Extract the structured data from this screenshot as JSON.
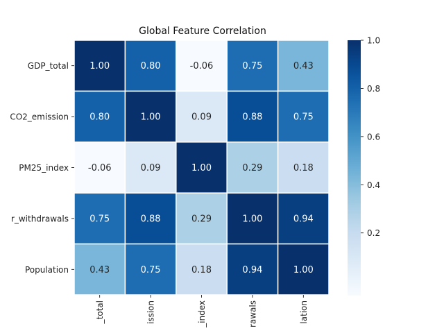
{
  "chart_data": {
    "type": "heatmap",
    "title": "Global Feature Correlation",
    "row_labels": [
      "GDP_total",
      "CO2_emission",
      "PM25_index",
      "r_withdrawals",
      "Population"
    ],
    "col_labels": [
      "_total",
      "ission",
      "_index",
      "rawals",
      "lation"
    ],
    "matrix": [
      [
        1.0,
        0.8,
        -0.06,
        0.75,
        0.43
      ],
      [
        0.8,
        1.0,
        0.09,
        0.88,
        0.75
      ],
      [
        -0.06,
        0.09,
        1.0,
        0.29,
        0.18
      ],
      [
        0.75,
        0.88,
        0.29,
        1.0,
        0.94
      ],
      [
        0.43,
        0.75,
        0.18,
        0.94,
        1.0
      ]
    ],
    "value_format": "2 decimals",
    "colormap": "Blues",
    "color_range": [
      -0.06,
      1.0
    ],
    "colorbar_ticks": [
      "0.2",
      "0.4",
      "0.6",
      "0.8",
      "1.0"
    ],
    "colorbar_tick_values": [
      0.2,
      0.4,
      0.6,
      0.8,
      1.0
    ],
    "cell_border_color": "#ffffff",
    "grid": false
  }
}
